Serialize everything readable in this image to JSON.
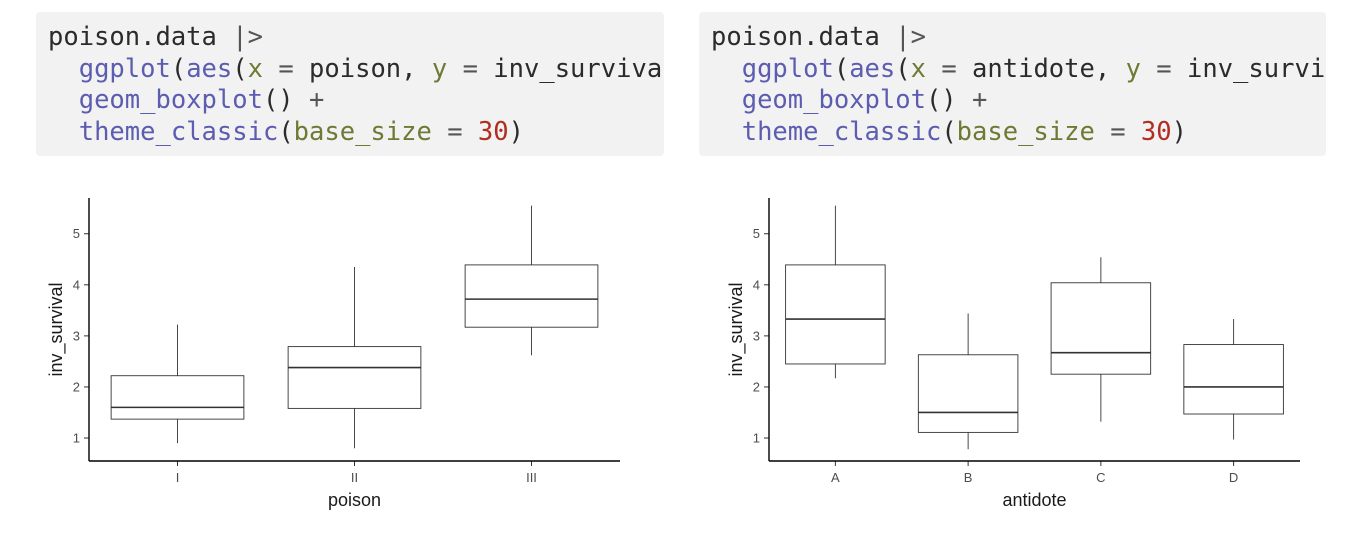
{
  "code_blocks": [
    {
      "lines": [
        [
          {
            "t": "poison.data ",
            "c": "plain"
          },
          {
            "t": "|>",
            "c": "op"
          }
        ],
        [
          {
            "t": "  ",
            "c": "plain"
          },
          {
            "t": "ggplot",
            "c": "fn"
          },
          {
            "t": "(",
            "c": "plain"
          },
          {
            "t": "aes",
            "c": "fn"
          },
          {
            "t": "(",
            "c": "plain"
          },
          {
            "t": "x",
            "c": "arg"
          },
          {
            "t": " = ",
            "c": "op"
          },
          {
            "t": "poison, ",
            "c": "plain"
          },
          {
            "t": "y",
            "c": "arg"
          },
          {
            "t": " = ",
            "c": "op"
          },
          {
            "t": "inv_surviva",
            "c": "plain"
          }
        ],
        [
          {
            "t": "  ",
            "c": "plain"
          },
          {
            "t": "geom_boxplot",
            "c": "fn"
          },
          {
            "t": "() ",
            "c": "plain"
          },
          {
            "t": "+",
            "c": "op"
          }
        ],
        [
          {
            "t": "  ",
            "c": "plain"
          },
          {
            "t": "theme_classic",
            "c": "fn"
          },
          {
            "t": "(",
            "c": "plain"
          },
          {
            "t": "base_size",
            "c": "arg"
          },
          {
            "t": " = ",
            "c": "op"
          },
          {
            "t": "30",
            "c": "num"
          },
          {
            "t": ")",
            "c": "plain"
          }
        ]
      ]
    },
    {
      "lines": [
        [
          {
            "t": "poison.data ",
            "c": "plain"
          },
          {
            "t": "|>",
            "c": "op"
          }
        ],
        [
          {
            "t": "  ",
            "c": "plain"
          },
          {
            "t": "ggplot",
            "c": "fn"
          },
          {
            "t": "(",
            "c": "plain"
          },
          {
            "t": "aes",
            "c": "fn"
          },
          {
            "t": "(",
            "c": "plain"
          },
          {
            "t": "x",
            "c": "arg"
          },
          {
            "t": " = ",
            "c": "op"
          },
          {
            "t": "antidote, ",
            "c": "plain"
          },
          {
            "t": "y",
            "c": "arg"
          },
          {
            "t": " = ",
            "c": "op"
          },
          {
            "t": "inv_survi",
            "c": "plain"
          }
        ],
        [
          {
            "t": "  ",
            "c": "plain"
          },
          {
            "t": "geom_boxplot",
            "c": "fn"
          },
          {
            "t": "() ",
            "c": "plain"
          },
          {
            "t": "+",
            "c": "op"
          }
        ],
        [
          {
            "t": "  ",
            "c": "plain"
          },
          {
            "t": "theme_classic",
            "c": "fn"
          },
          {
            "t": "(",
            "c": "plain"
          },
          {
            "t": "base_size",
            "c": "arg"
          },
          {
            "t": " = ",
            "c": "op"
          },
          {
            "t": "30",
            "c": "num"
          },
          {
            "t": ")",
            "c": "plain"
          }
        ]
      ]
    }
  ],
  "chart_data": [
    {
      "type": "boxplot",
      "xlabel": "poison",
      "ylabel": "inv_survival",
      "ylim": [
        0.55,
        5.7
      ],
      "yticks": [
        1,
        2,
        3,
        4,
        5
      ],
      "grid": false,
      "categories": [
        "I",
        "II",
        "III"
      ],
      "boxes": [
        {
          "min": 0.9,
          "q1": 1.37,
          "median": 1.6,
          "q3": 2.22,
          "max": 3.22
        },
        {
          "min": 0.8,
          "q1": 1.58,
          "median": 2.38,
          "q3": 2.79,
          "max": 4.35
        },
        {
          "min": 2.62,
          "q1": 3.17,
          "median": 3.72,
          "q3": 4.39,
          "max": 5.55
        }
      ]
    },
    {
      "type": "boxplot",
      "xlabel": "antidote",
      "ylabel": "inv_survival",
      "ylim": [
        0.55,
        5.7
      ],
      "yticks": [
        1,
        2,
        3,
        4,
        5
      ],
      "grid": false,
      "categories": [
        "A",
        "B",
        "C",
        "D"
      ],
      "boxes": [
        {
          "min": 2.17,
          "q1": 2.45,
          "median": 3.33,
          "q3": 4.39,
          "max": 5.55
        },
        {
          "min": 0.78,
          "q1": 1.11,
          "median": 1.5,
          "q3": 2.63,
          "max": 3.44
        },
        {
          "min": 1.32,
          "q1": 2.25,
          "median": 2.67,
          "q3": 4.04,
          "max": 4.54
        },
        {
          "min": 0.97,
          "q1": 1.47,
          "median": 2.0,
          "q3": 2.83,
          "max": 3.33
        }
      ]
    }
  ]
}
